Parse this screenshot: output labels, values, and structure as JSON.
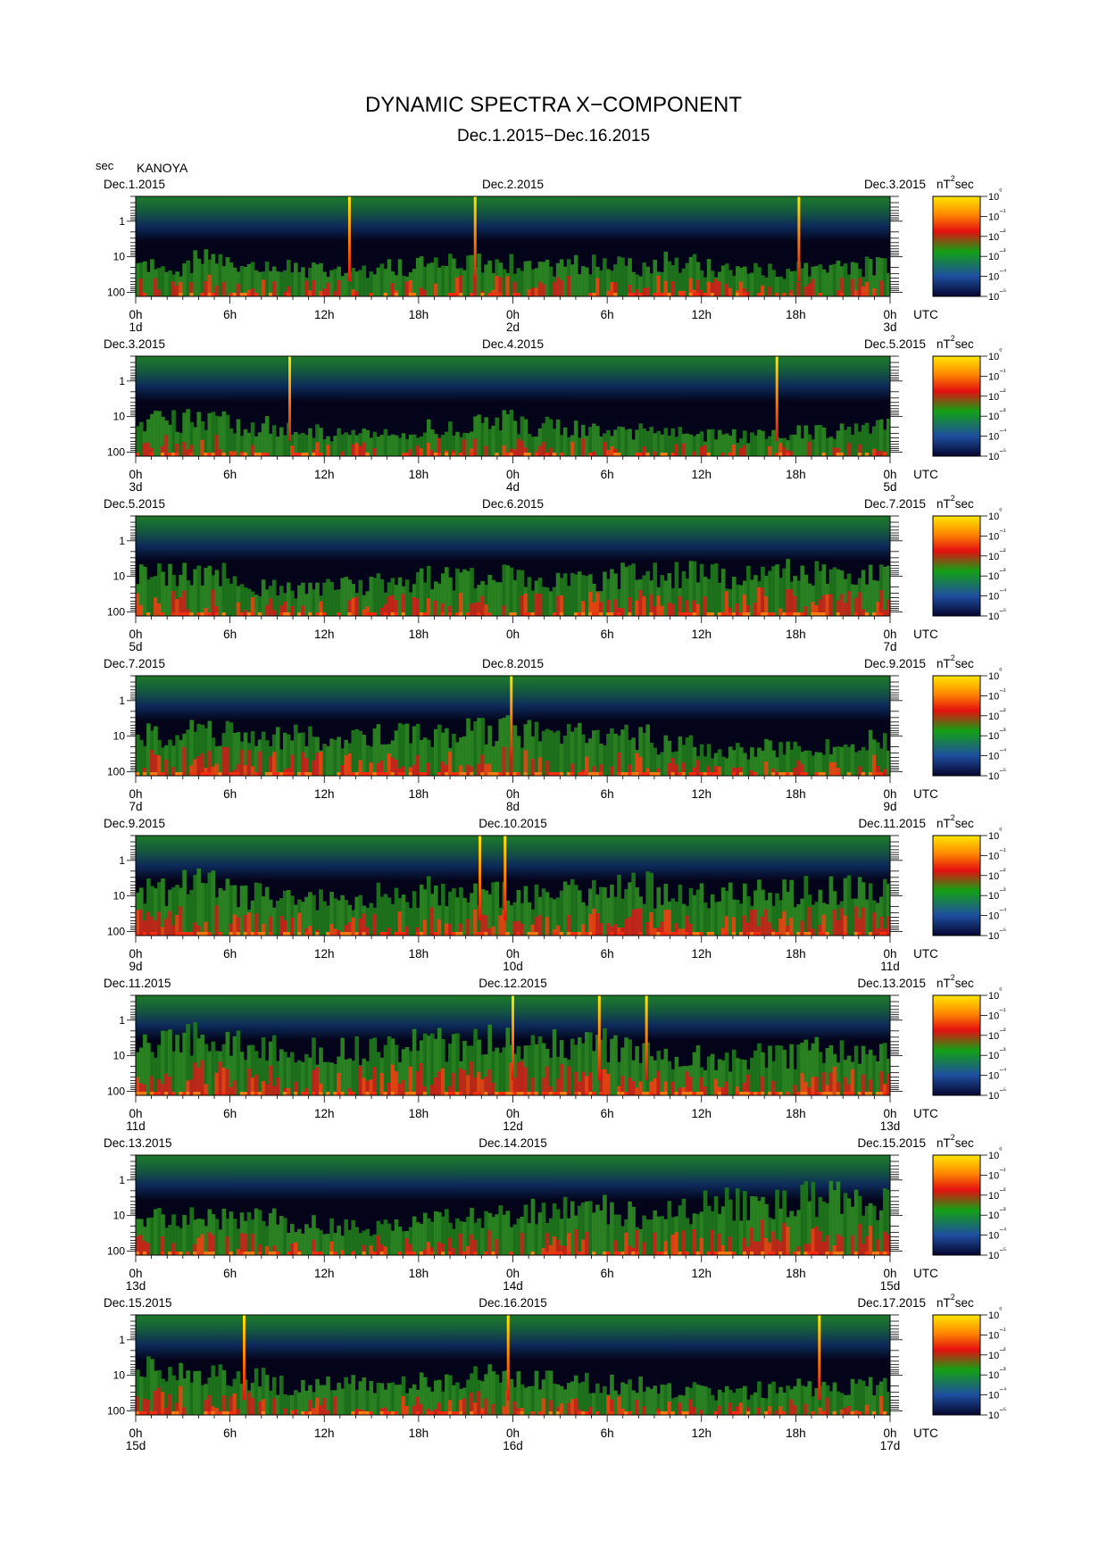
{
  "title": "DYNAMIC SPECTRA X−COMPONENT",
  "subtitle": "Dec.1.2015−Dec.16.2015",
  "station": "KANOYA",
  "y_unit": "sec",
  "time_unit": "UTC",
  "colorbar_unit": "nT²sec",
  "chart_data": {
    "type": "heatmap",
    "yscale": "log",
    "ylabel": "sec",
    "y_tick_labels": [
      "1",
      "10",
      "100"
    ],
    "x_tick_labels": [
      "0h",
      "6h",
      "12h",
      "18h",
      "0h",
      "6h",
      "12h",
      "18h",
      "0h"
    ],
    "colorbar": {
      "scale": "log",
      "range": [
        1e-05,
        1
      ],
      "tick_labels": [
        "10−⁵",
        "10−⁴",
        "10−³",
        "10−²",
        "10−¹",
        "10⁰"
      ],
      "colors": [
        "#05052e",
        "#1e4ea0",
        "#14a014",
        "#e41010",
        "#ff8800",
        "#ffe800"
      ]
    },
    "panels": [
      {
        "start_label": "Dec.1.2015",
        "mid_label": "Dec.2.2015",
        "end_label": "Dec.3.2015",
        "day_labels": [
          "1d",
          "2d",
          "3d"
        ],
        "spikes": [
          13.6,
          21.6,
          42.2
        ],
        "activity": [
          0.3,
          0.35,
          0.3,
          0.28,
          0.25,
          0.3,
          0.33,
          0.35,
          0.3,
          0.32,
          0.3,
          0.35,
          0.28,
          0.25,
          0.3,
          0.3
        ]
      },
      {
        "start_label": "Dec.3.2015",
        "mid_label": "Dec.4.2015",
        "end_label": "Dec.5.2015",
        "day_labels": [
          "3d",
          "4d",
          "5d"
        ],
        "spikes": [
          9.8,
          40.8
        ],
        "activity": [
          0.35,
          0.4,
          0.3,
          0.25,
          0.22,
          0.2,
          0.28,
          0.35,
          0.3,
          0.28,
          0.25,
          0.22,
          0.2,
          0.22,
          0.25,
          0.28
        ]
      },
      {
        "start_label": "Dec.5.2015",
        "mid_label": "Dec.6.2015",
        "end_label": "Dec.7.2015",
        "day_labels": [
          "5d",
          "7d"
        ],
        "spikes": [],
        "activity": [
          0.4,
          0.42,
          0.3,
          0.25,
          0.3,
          0.35,
          0.38,
          0.4,
          0.35,
          0.38,
          0.4,
          0.42,
          0.4,
          0.45,
          0.42,
          0.4
        ]
      },
      {
        "start_label": "Dec.7.2015",
        "mid_label": "Dec.8.2015",
        "end_label": "Dec.9.2015",
        "day_labels": [
          "7d",
          "8d",
          "9d"
        ],
        "spikes": [
          23.9
        ],
        "activity": [
          0.42,
          0.45,
          0.4,
          0.38,
          0.35,
          0.4,
          0.42,
          0.45,
          0.42,
          0.4,
          0.38,
          0.3,
          0.25,
          0.28,
          0.3,
          0.35
        ]
      },
      {
        "start_label": "Dec.9.2015",
        "mid_label": "Dec.10.2015",
        "end_label": "Dec.11.2015",
        "day_labels": [
          "9d",
          "10d",
          "11d"
        ],
        "spikes": [
          21.9,
          23.5
        ],
        "activity": [
          0.45,
          0.5,
          0.4,
          0.35,
          0.35,
          0.4,
          0.45,
          0.42,
          0.38,
          0.45,
          0.48,
          0.4,
          0.4,
          0.42,
          0.45,
          0.45
        ]
      },
      {
        "start_label": "Dec.11.2015",
        "mid_label": "Dec.12.2015",
        "end_label": "Dec.13.2015",
        "day_labels": [
          "11d",
          "12d",
          "13d"
        ],
        "spikes": [
          24.0,
          29.5,
          32.5
        ],
        "activity": [
          0.5,
          0.55,
          0.5,
          0.45,
          0.45,
          0.5,
          0.5,
          0.55,
          0.55,
          0.5,
          0.45,
          0.4,
          0.35,
          0.4,
          0.45,
          0.45
        ]
      },
      {
        "start_label": "Dec.13.2015",
        "mid_label": "Dec.14.2015",
        "end_label": "Dec.15.2015",
        "day_labels": [
          "13d",
          "14d",
          "15d"
        ],
        "spikes": [],
        "activity": [
          0.4,
          0.38,
          0.35,
          0.3,
          0.28,
          0.3,
          0.35,
          0.4,
          0.42,
          0.45,
          0.4,
          0.45,
          0.5,
          0.55,
          0.55,
          0.5
        ]
      },
      {
        "start_label": "Dec.15.2015",
        "mid_label": "Dec.16.2015",
        "end_label": "Dec.17.2015",
        "day_labels": [
          "15d",
          "16d",
          "17d"
        ],
        "spikes": [
          6.9,
          23.7,
          43.5
        ],
        "activity": [
          0.45,
          0.4,
          0.35,
          0.3,
          0.3,
          0.32,
          0.35,
          0.38,
          0.35,
          0.33,
          0.3,
          0.25,
          0.22,
          0.25,
          0.28,
          0.3
        ]
      }
    ]
  }
}
